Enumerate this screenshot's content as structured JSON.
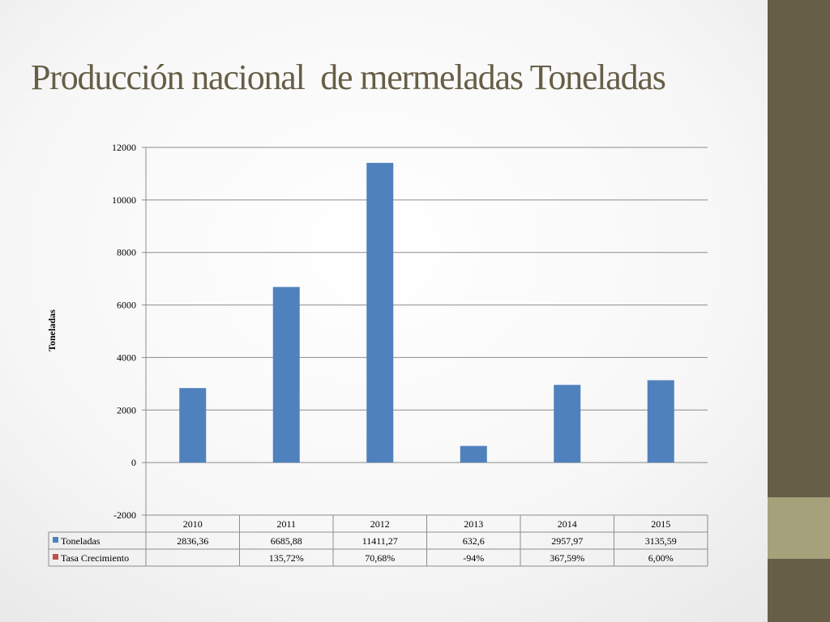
{
  "title": "Producción nacional  de mermeladas Toneladas",
  "colors": {
    "bar": "#4f81bd",
    "series2": "#c0504d",
    "accent": "#675e47",
    "accent_light": "#a5a27b"
  },
  "chart_data": {
    "type": "bar",
    "categories": [
      "2010",
      "2011",
      "2012",
      "2013",
      "2014",
      "2015"
    ],
    "series": [
      {
        "name": "Toneladas",
        "values": [
          2836.36,
          6685.88,
          11411.27,
          632.6,
          2957.97,
          3135.59
        ]
      }
    ],
    "ylabel": "Toneladas",
    "ylim": [
      -2000,
      12000
    ],
    "yticks": [
      "12000",
      "10000",
      "8000",
      "6000",
      "4000",
      "2000",
      "0",
      "-2000"
    ],
    "grid": true,
    "data_table": {
      "rows": [
        {
          "label": "Toneladas",
          "values": [
            "2836,36",
            "6685,88",
            "11411,27",
            "632,6",
            "2957,97",
            "3135,59"
          ]
        },
        {
          "label": "Tasa Crecimiento",
          "values": [
            "",
            "135,72%",
            "70,68%",
            "-94%",
            "367,59%",
            "6,00%"
          ]
        }
      ]
    }
  }
}
